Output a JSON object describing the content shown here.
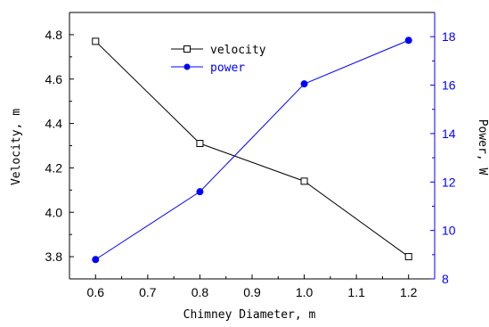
{
  "chart_data": {
    "type": "line",
    "x": [
      0.6,
      0.8,
      1.0,
      1.2
    ],
    "xlabel": "Chimney Diameter, m",
    "xlim": [
      0.55,
      1.25
    ],
    "xticks": [
      "0.6",
      "0.7",
      "0.8",
      "0.9",
      "1.0",
      "1.1",
      "1.2"
    ],
    "y_left": {
      "label": "Velocity, m",
      "lim": [
        3.7,
        4.9
      ],
      "ticks": [
        "3.8",
        "4.0",
        "4.2",
        "4.4",
        "4.6",
        "4.8"
      ]
    },
    "y_right": {
      "label": "Power, W",
      "lim": [
        8,
        19
      ],
      "ticks": [
        "8",
        "10",
        "12",
        "14",
        "16",
        "18"
      ]
    },
    "series": [
      {
        "name": "velocity",
        "axis": "left",
        "color": "#000000",
        "marker": "open-square",
        "values": [
          4.77,
          4.31,
          4.14,
          3.8
        ]
      },
      {
        "name": "power",
        "axis": "right",
        "color": "#0000ff",
        "marker": "filled-circle",
        "values": [
          8.8,
          11.6,
          16.05,
          17.85
        ]
      }
    ],
    "legend_position": "top-center",
    "grid": false,
    "right_axis_color": "#0000ff"
  }
}
